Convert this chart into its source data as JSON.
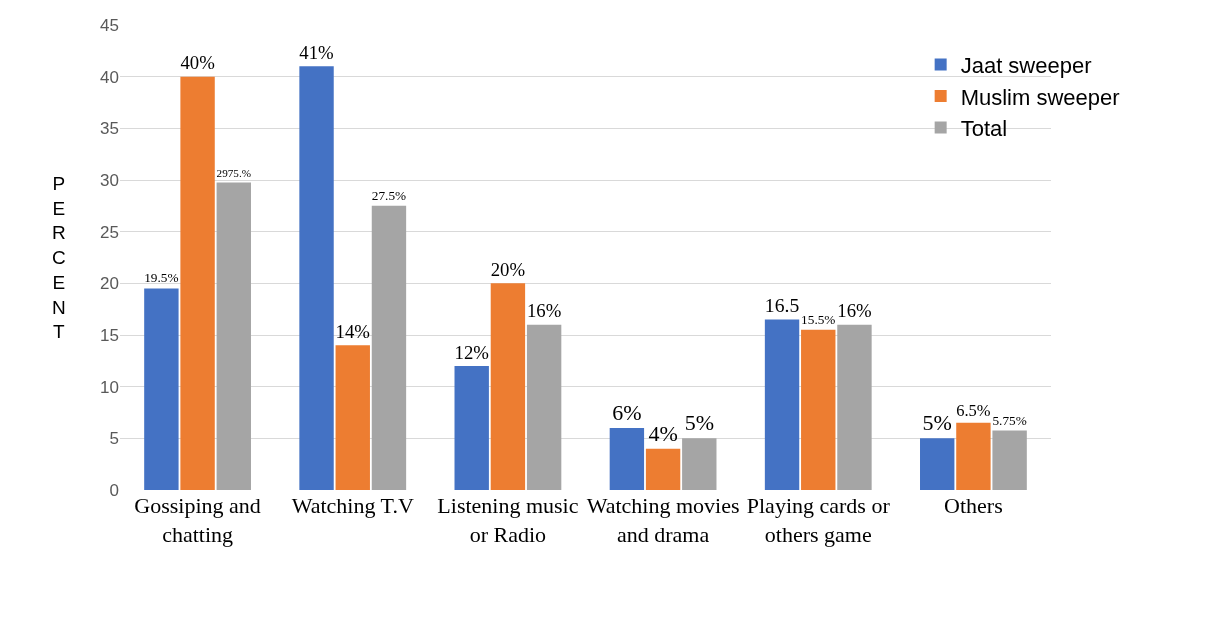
{
  "chart_data": {
    "type": "bar",
    "ylabel": "PERCENT",
    "categories": [
      "Gossiping and chatting",
      "Watching T.V",
      "Listening music or Radio",
      "Watching movies and drama",
      "Playing cards or others game",
      "Others"
    ],
    "series": [
      {
        "name": "Jaat sweeper",
        "color": "#4472c4",
        "values": [
          19.5,
          41,
          12,
          6,
          16.5,
          5
        ],
        "value_labels": [
          "19.5%",
          "41%",
          "12%",
          "6%",
          "16.5",
          "5%"
        ]
      },
      {
        "name": "Muslim sweeper",
        "color": "#ed7d31",
        "values": [
          40,
          14,
          20,
          4,
          15.5,
          6.5
        ],
        "value_labels": [
          "40%",
          "14%",
          "20%",
          "4%",
          "15.5%",
          "6.5%"
        ]
      },
      {
        "name": "Total",
        "color": "#a5a5a5",
        "values": [
          29.75,
          27.5,
          16,
          5,
          16,
          5.75
        ],
        "value_labels": [
          "2975.%",
          "27.5%",
          "16%",
          "5%",
          "16%",
          "5.75%"
        ]
      }
    ],
    "ylim": [
      0,
      45
    ],
    "yticks": [
      0,
      5,
      10,
      15,
      20,
      25,
      30,
      35,
      40,
      45
    ],
    "grid": "y",
    "legend": "top right"
  }
}
